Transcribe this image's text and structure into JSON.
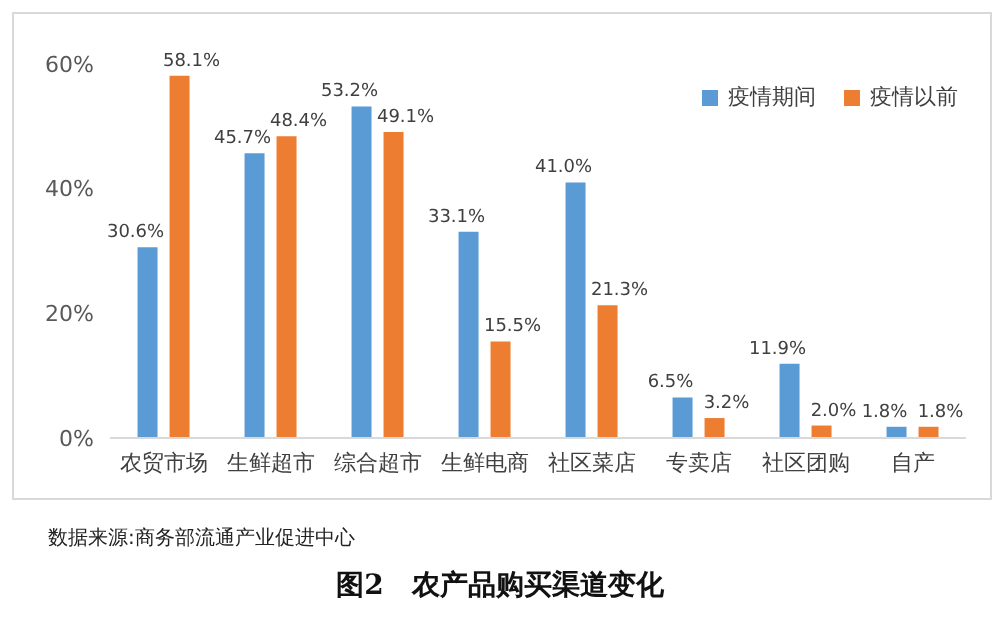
{
  "chart_data": {
    "type": "bar",
    "title": "图2　农产品购买渠道变化",
    "annotations": [
      "数据来源:商务部流通产业促进中心"
    ],
    "categories": [
      "农贸市场",
      "生鲜超市",
      "综合超市",
      "生鲜电商",
      "社区菜店",
      "专卖店",
      "社区团购",
      "自产"
    ],
    "series": [
      {
        "name": "疫情期间",
        "color": "#5b9bd5",
        "values": [
          30.6,
          45.7,
          53.2,
          33.1,
          41.0,
          6.5,
          11.9,
          1.8
        ],
        "value_labels": [
          "30.6%",
          "45.7%",
          "53.2%",
          "33.1%",
          "41.0%",
          "6.5%",
          "11.9%",
          "1.8%"
        ]
      },
      {
        "name": "疫情以前",
        "color": "#ed7d31",
        "values": [
          58.1,
          48.4,
          49.1,
          15.5,
          21.3,
          3.2,
          2.0,
          1.8
        ],
        "value_labels": [
          "58.1%",
          "48.4%",
          "49.1%",
          "15.5%",
          "21.3%",
          "3.2%",
          "2.0%",
          "1.8%"
        ]
      }
    ],
    "ylim": [
      0,
      60
    ],
    "yticks": [
      {
        "value": 0,
        "label": "0%"
      },
      {
        "value": 20,
        "label": "20%"
      },
      {
        "value": 40,
        "label": "40%"
      },
      {
        "value": 60,
        "label": "60%"
      }
    ],
    "grid": false,
    "legend": "top right"
  }
}
